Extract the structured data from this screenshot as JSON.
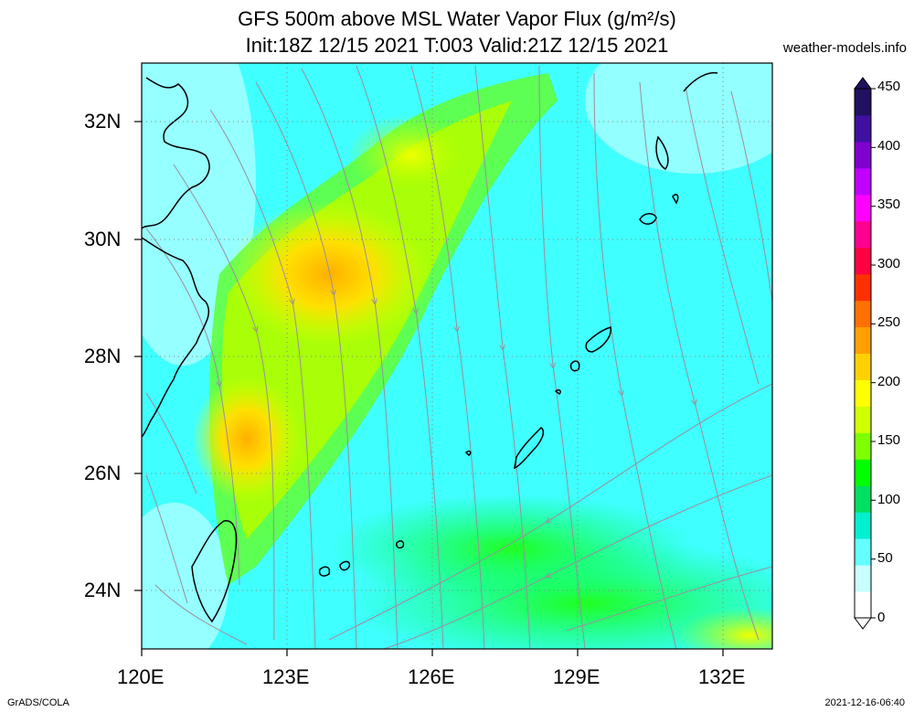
{
  "header": {
    "title_line1": "GFS 500m above MSL Water Vapor Flux (g/m²/s)",
    "title_line2": "Init:18Z 12/15 2021 T:003 Valid:21Z 12/15 2021",
    "site": "weather-models.info"
  },
  "map": {
    "lat_labels": [
      "32N",
      "30N",
      "28N",
      "26N",
      "24N"
    ],
    "lon_labels": [
      "120E",
      "123E",
      "126E",
      "129E",
      "132E"
    ],
    "lat_range": [
      23,
      33
    ],
    "lon_range": [
      120,
      133
    ]
  },
  "colorbar": {
    "labels": [
      "450",
      "400",
      "350",
      "300",
      "250",
      "200",
      "150",
      "100",
      "50",
      "0"
    ],
    "colors": [
      "#ffffff",
      "#c8ffff",
      "#64ffff",
      "#00f0d0",
      "#00e060",
      "#00ff00",
      "#80ff00",
      "#d0ff00",
      "#ffff00",
      "#ffd000",
      "#ffa000",
      "#ff7000",
      "#ff3000",
      "#ff0040",
      "#ff0090",
      "#ff00ff",
      "#c000ff",
      "#8000d0",
      "#4010a0",
      "#201060"
    ]
  },
  "footer": {
    "left": "GrADS/COLA",
    "right": "2021-12-16-06:40"
  }
}
